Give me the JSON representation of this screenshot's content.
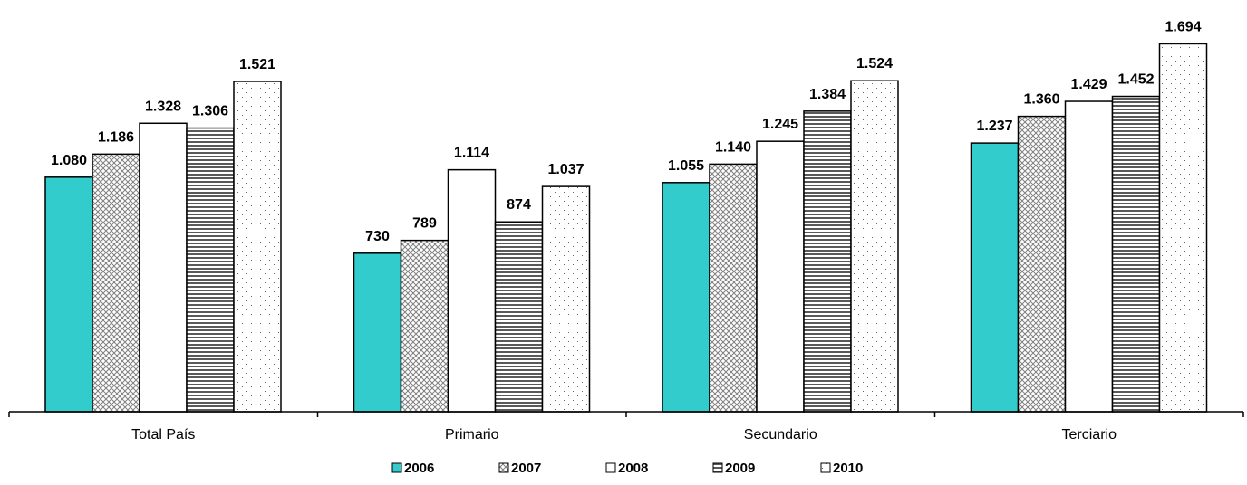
{
  "chart_data": {
    "type": "bar",
    "categories": [
      "Total País",
      "Primario",
      "Secundario",
      "Terciario"
    ],
    "series": [
      {
        "name": "2006",
        "values": [
          1080,
          730,
          1055,
          1237
        ],
        "labels": [
          "1.080",
          "730",
          "1.055",
          "1.237"
        ],
        "pattern": "solid",
        "color": "#33CCCC"
      },
      {
        "name": "2007",
        "values": [
          1186,
          789,
          1140,
          1360
        ],
        "labels": [
          "1.186",
          "789",
          "1.140",
          "1.360"
        ],
        "pattern": "crosshatch",
        "color": "#FFFFFF"
      },
      {
        "name": "2008",
        "values": [
          1328,
          1114,
          1245,
          1429
        ],
        "labels": [
          "1.328",
          "1.114",
          "1.245",
          "1.429"
        ],
        "pattern": "plain",
        "color": "#FFFFFF"
      },
      {
        "name": "2009",
        "values": [
          1306,
          874,
          1384,
          1452
        ],
        "labels": [
          "1.306",
          "874",
          "1.384",
          "1.452"
        ],
        "pattern": "horizontal-stripes",
        "color": "#FFFFFF"
      },
      {
        "name": "2010",
        "values": [
          1521,
          1037,
          1524,
          1694
        ],
        "labels": [
          "1.521",
          "1.037",
          "1.524",
          "1.694"
        ],
        "pattern": "dots",
        "color": "#FFFFFF"
      }
    ],
    "title": "",
    "xlabel": "",
    "ylabel": "",
    "ylim": [
      0,
      1750
    ],
    "grid": false,
    "legend": "bottom"
  }
}
